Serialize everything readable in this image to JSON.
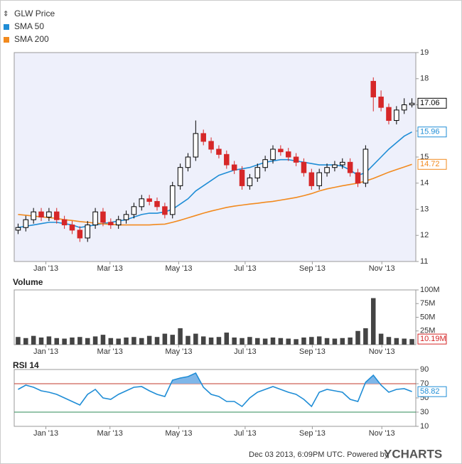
{
  "chart_data": [
    {
      "type": "candlestick",
      "series": [
        {
          "name": "GLW Price",
          "up_color": "#000000",
          "down_color": "#d62728",
          "open": [
            12.2,
            12.3,
            12.6,
            12.9,
            12.7,
            12.9,
            12.6,
            12.4,
            12.2,
            11.9,
            12.4,
            12.9,
            12.5,
            12.4,
            12.6,
            12.8,
            13.1,
            13.4,
            13.3,
            13.1,
            12.8,
            13.9,
            14.6,
            15.0,
            15.9,
            15.6,
            15.3,
            15.1,
            14.7,
            14.5,
            13.9,
            14.2,
            14.6,
            14.9,
            15.3,
            15.2,
            15.0,
            14.8,
            14.4,
            13.9,
            14.4,
            14.6,
            14.7,
            14.8,
            14.4,
            14.0,
            17.9,
            17.3,
            16.9,
            16.4,
            16.8,
            17.0
          ],
          "high": [
            12.45,
            12.75,
            13.05,
            13.05,
            13.05,
            13.05,
            12.75,
            12.55,
            12.35,
            12.55,
            13.05,
            13.05,
            12.65,
            12.75,
            12.95,
            13.25,
            13.55,
            13.55,
            13.45,
            13.25,
            14.05,
            14.75,
            15.15,
            16.4,
            16.05,
            15.75,
            15.45,
            15.25,
            14.85,
            14.65,
            14.35,
            14.75,
            15.05,
            15.45,
            15.45,
            15.35,
            15.15,
            14.95,
            14.55,
            14.55,
            14.75,
            14.85,
            14.95,
            14.95,
            14.55,
            15.45,
            18.05,
            17.55,
            17.05,
            16.95,
            17.25,
            17.25
          ],
          "low": [
            12.05,
            12.15,
            12.45,
            12.55,
            12.55,
            12.45,
            12.25,
            12.05,
            11.75,
            11.75,
            12.25,
            12.35,
            12.25,
            12.25,
            12.45,
            12.65,
            12.95,
            13.15,
            12.95,
            12.65,
            12.65,
            13.75,
            14.45,
            14.85,
            15.45,
            15.15,
            14.95,
            14.55,
            14.35,
            13.75,
            13.75,
            14.05,
            14.45,
            14.75,
            15.05,
            14.85,
            14.65,
            14.25,
            13.75,
            13.75,
            14.25,
            14.45,
            14.55,
            14.25,
            13.85,
            13.85,
            16.75,
            16.75,
            16.25,
            16.25,
            16.65,
            16.9
          ],
          "close": [
            12.3,
            12.6,
            12.9,
            12.7,
            12.9,
            12.6,
            12.4,
            12.2,
            11.9,
            12.4,
            12.9,
            12.5,
            12.4,
            12.6,
            12.8,
            13.1,
            13.4,
            13.3,
            13.1,
            12.8,
            13.9,
            14.6,
            15.0,
            15.9,
            15.6,
            15.3,
            15.1,
            14.7,
            14.5,
            13.9,
            14.2,
            14.6,
            14.9,
            15.3,
            15.2,
            15.0,
            14.8,
            14.4,
            13.9,
            14.4,
            14.6,
            14.7,
            14.8,
            14.4,
            14.0,
            15.3,
            17.3,
            16.9,
            16.4,
            16.8,
            17.0,
            17.06
          ]
        },
        {
          "name": "SMA 50",
          "color": "#1f8dd6",
          "values": [
            12.3,
            12.35,
            12.4,
            12.45,
            12.5,
            12.5,
            12.45,
            12.4,
            12.3,
            12.35,
            12.4,
            12.45,
            12.5,
            12.55,
            12.6,
            12.7,
            12.8,
            12.85,
            12.85,
            12.9,
            13.0,
            13.2,
            13.4,
            13.7,
            13.9,
            14.1,
            14.3,
            14.4,
            14.5,
            14.55,
            14.6,
            14.7,
            14.8,
            14.85,
            14.9,
            14.9,
            14.85,
            14.8,
            14.75,
            14.7,
            14.7,
            14.7,
            14.65,
            14.5,
            14.3,
            14.4,
            14.7,
            15.0,
            15.3,
            15.55,
            15.8,
            15.96
          ]
        },
        {
          "name": "SMA 200",
          "color": "#f28a1e",
          "values": [
            12.8,
            12.77,
            12.74,
            12.71,
            12.68,
            12.65,
            12.6,
            12.57,
            12.53,
            12.5,
            12.47,
            12.44,
            12.42,
            12.4,
            12.4,
            12.4,
            12.4,
            12.4,
            12.42,
            12.43,
            12.5,
            12.58,
            12.67,
            12.76,
            12.85,
            12.93,
            13.0,
            13.07,
            13.12,
            13.16,
            13.2,
            13.23,
            13.27,
            13.3,
            13.35,
            13.4,
            13.45,
            13.52,
            13.6,
            13.7,
            13.78,
            13.84,
            13.9,
            13.95,
            14.0,
            14.08,
            14.18,
            14.3,
            14.42,
            14.52,
            14.62,
            14.72
          ]
        }
      ],
      "xlim": [
        -0.5,
        51.5
      ],
      "xticks": [
        {
          "value": 3.6,
          "label": "Jan '13"
        },
        {
          "value": 11.9,
          "label": "Mar '13"
        },
        {
          "value": 20.8,
          "label": "May '13"
        },
        {
          "value": 29.4,
          "label": "Jul '13"
        },
        {
          "value": 38.1,
          "label": "Sep '13"
        },
        {
          "value": 47.1,
          "label": "Nov '13"
        }
      ],
      "ylim": [
        11,
        19
      ],
      "yticks": [
        11,
        12,
        13,
        14,
        15,
        16,
        17,
        18,
        19
      ],
      "grid": false
    },
    {
      "type": "bar",
      "title": "Volume",
      "color": "#444444",
      "values": [
        14,
        12,
        16,
        13,
        15,
        12,
        11,
        13,
        14,
        12,
        15,
        18,
        12,
        11,
        13,
        14,
        12,
        16,
        14,
        20,
        18,
        30,
        16,
        20,
        15,
        13,
        14,
        22,
        13,
        12,
        14,
        12,
        11,
        13,
        12,
        11,
        10,
        13,
        14,
        15,
        12,
        11,
        12,
        13,
        25,
        30,
        85,
        20,
        14,
        12,
        11,
        10.19
      ],
      "value_labels": [
        null,
        null,
        null,
        null,
        null,
        null,
        null,
        null,
        null,
        null,
        null,
        null,
        null,
        null,
        null,
        null,
        null,
        null,
        null,
        null,
        null,
        null,
        null,
        null,
        null,
        null,
        null,
        null,
        null,
        null,
        null,
        null,
        null,
        null,
        null,
        null,
        null,
        null,
        null,
        null,
        null,
        null,
        null,
        null,
        null,
        null,
        null,
        null,
        null,
        null,
        null,
        "10.19M"
      ],
      "xlim": [
        -0.5,
        51.5
      ],
      "xticks": [
        {
          "value": 3.6,
          "label": "Jan '13"
        },
        {
          "value": 11.9,
          "label": "Mar '13"
        },
        {
          "value": 20.8,
          "label": "May '13"
        },
        {
          "value": 29.4,
          "label": "Jul '13"
        },
        {
          "value": 38.1,
          "label": "Sep '13"
        },
        {
          "value": 47.1,
          "label": "Nov '13"
        }
      ],
      "ylim": [
        0,
        100
      ],
      "yticks": [
        {
          "value": 25,
          "label": "25M"
        },
        {
          "value": 50,
          "label": "50M"
        },
        {
          "value": 75,
          "label": "75M"
        },
        {
          "value": 100,
          "label": "100M"
        }
      ]
    },
    {
      "type": "line",
      "title": "RSI 14",
      "color": "#1f8dd6",
      "values": [
        62,
        68,
        65,
        60,
        58,
        55,
        50,
        45,
        40,
        55,
        62,
        50,
        48,
        55,
        60,
        65,
        66,
        60,
        55,
        52,
        75,
        78,
        80,
        85,
        65,
        55,
        52,
        45,
        45,
        38,
        50,
        58,
        62,
        66,
        62,
        58,
        55,
        48,
        38,
        58,
        62,
        60,
        58,
        48,
        45,
        72,
        82,
        68,
        58,
        62,
        63,
        58.82
      ],
      "levels": [
        {
          "value": 70,
          "color": "#c0392b"
        },
        {
          "value": 30,
          "color": "#2e8b57"
        }
      ],
      "xlim": [
        -0.5,
        51.5
      ],
      "xticks": [
        {
          "value": 3.6,
          "label": "Jan '13"
        },
        {
          "value": 11.9,
          "label": "Mar '13"
        },
        {
          "value": 20.8,
          "label": "May '13"
        },
        {
          "value": 29.4,
          "label": "Jul '13"
        },
        {
          "value": 38.1,
          "label": "Sep '13"
        },
        {
          "value": 47.1,
          "label": "Nov '13"
        }
      ],
      "ylim": [
        10,
        90
      ],
      "yticks": [
        10,
        30,
        50,
        70,
        90
      ]
    }
  ],
  "footer": {
    "text": "Dec 03 2013, 6:09PM UTC. Powered by",
    "brand": "YCHARTS"
  }
}
